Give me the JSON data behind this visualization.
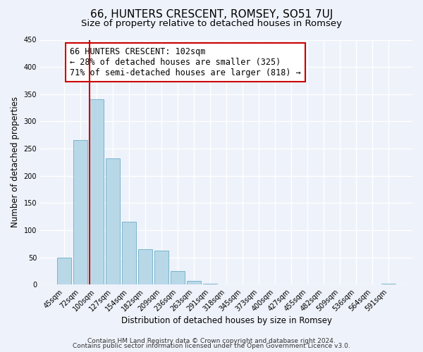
{
  "title": "66, HUNTERS CRESCENT, ROMSEY, SO51 7UJ",
  "subtitle": "Size of property relative to detached houses in Romsey",
  "xlabel": "Distribution of detached houses by size in Romsey",
  "ylabel": "Number of detached properties",
  "footer_line1": "Contains HM Land Registry data © Crown copyright and database right 2024.",
  "footer_line2": "Contains public sector information licensed under the Open Government Licence v3.0.",
  "bar_labels": [
    "45sqm",
    "72sqm",
    "100sqm",
    "127sqm",
    "154sqm",
    "182sqm",
    "209sqm",
    "236sqm",
    "263sqm",
    "291sqm",
    "318sqm",
    "345sqm",
    "373sqm",
    "400sqm",
    "427sqm",
    "455sqm",
    "482sqm",
    "509sqm",
    "536sqm",
    "564sqm",
    "591sqm"
  ],
  "bar_values": [
    50,
    265,
    340,
    232,
    115,
    65,
    62,
    25,
    7,
    2,
    0,
    0,
    0,
    0,
    0,
    0,
    0,
    0,
    0,
    0,
    2
  ],
  "bar_color": "#b8d8e8",
  "bar_edge_color": "#7ab4cc",
  "ylim": [
    0,
    450
  ],
  "yticks": [
    0,
    50,
    100,
    150,
    200,
    250,
    300,
    350,
    400,
    450
  ],
  "vline_x_index": 2,
  "vline_color": "#cc0000",
  "annotation_title": "66 HUNTERS CRESCENT: 102sqm",
  "annotation_line1": "← 28% of detached houses are smaller (325)",
  "annotation_line2": "71% of semi-detached houses are larger (818) →",
  "background_color": "#eef2fa",
  "grid_color": "#ffffff",
  "title_fontsize": 11,
  "subtitle_fontsize": 9.5,
  "annotation_fontsize": 8.5,
  "axis_label_fontsize": 8.5,
  "tick_fontsize": 7,
  "footer_fontsize": 6.5
}
